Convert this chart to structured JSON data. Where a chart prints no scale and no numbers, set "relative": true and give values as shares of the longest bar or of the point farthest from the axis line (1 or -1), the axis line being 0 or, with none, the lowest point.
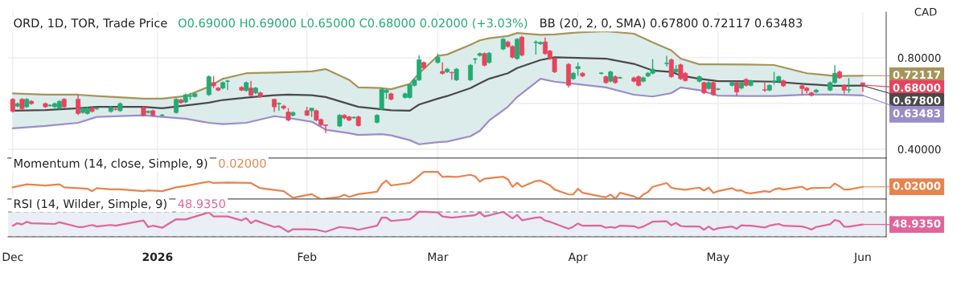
{
  "chart_data": [
    {
      "type": "candlestick",
      "title": "ORD, 1D, TOR, Trade Price",
      "ylabel": "CAD",
      "x": [
        "2025-12-01",
        "2025-12-02",
        "2025-12-03",
        "2025-12-04",
        "2025-12-05",
        "2025-12-08",
        "2025-12-09",
        "2025-12-10",
        "2025-12-11",
        "2025-12-12",
        "2025-12-15",
        "2025-12-16",
        "2025-12-17",
        "2025-12-18",
        "2025-12-19",
        "2025-12-22",
        "2025-12-23",
        "2025-12-24",
        "2025-12-29",
        "2025-12-30",
        "2025-12-31",
        "2026-01-02",
        "2026-01-05",
        "2026-01-06",
        "2026-01-07",
        "2026-01-08",
        "2026-01-09",
        "2026-01-12",
        "2026-01-13",
        "2026-01-14",
        "2026-01-15",
        "2026-01-16",
        "2026-01-19",
        "2026-01-20",
        "2026-01-21",
        "2026-01-22",
        "2026-01-23",
        "2026-01-26",
        "2026-01-27",
        "2026-01-28",
        "2026-01-29",
        "2026-01-30",
        "2026-02-02",
        "2026-02-03",
        "2026-02-04",
        "2026-02-05",
        "2026-02-06",
        "2026-02-09",
        "2026-02-10",
        "2026-02-11",
        "2026-02-12",
        "2026-02-13",
        "2026-02-17",
        "2026-02-18",
        "2026-02-19",
        "2026-02-20",
        "2026-02-23",
        "2026-02-24",
        "2026-02-25",
        "2026-02-26",
        "2026-02-27",
        "2026-03-02",
        "2026-03-03",
        "2026-03-04",
        "2026-03-05",
        "2026-03-06",
        "2026-03-09",
        "2026-03-10",
        "2026-03-11",
        "2026-03-12",
        "2026-03-13",
        "2026-03-16",
        "2026-03-17",
        "2026-03-18",
        "2026-03-19",
        "2026-03-20",
        "2026-03-23",
        "2026-03-24",
        "2026-03-25",
        "2026-03-26",
        "2026-03-27",
        "2026-03-30",
        "2026-03-31",
        "2026-04-01",
        "2026-04-02",
        "2026-04-06",
        "2026-04-07",
        "2026-04-08",
        "2026-04-09",
        "2026-04-10",
        "2026-04-13",
        "2026-04-14",
        "2026-04-15",
        "2026-04-16",
        "2026-04-17",
        "2026-04-20",
        "2026-04-21",
        "2026-04-22",
        "2026-04-23",
        "2026-04-24",
        "2026-04-27",
        "2026-04-28",
        "2026-04-29",
        "2026-04-30",
        "2026-05-01",
        "2026-05-04",
        "2026-05-05",
        "2026-05-06",
        "2026-05-07",
        "2026-05-08",
        "2026-05-11",
        "2026-05-12",
        "2026-05-13",
        "2026-05-14",
        "2026-05-15",
        "2026-05-19",
        "2026-05-20",
        "2026-05-21",
        "2026-05-22",
        "2026-05-25",
        "2026-05-26",
        "2026-05-27",
        "2026-05-28",
        "2026-05-29",
        "2026-06-01"
      ],
      "ohlc": [
        [
          0.618,
          0.623,
          0.56,
          0.565
        ],
        [
          0.588,
          0.604,
          0.583,
          0.599
        ],
        [
          0.618,
          0.623,
          0.572,
          0.577
        ],
        [
          0.585,
          0.623,
          0.58,
          0.618
        ],
        [
          0.609,
          0.614,
          0.594,
          0.599
        ],
        [
          0.599,
          0.604,
          0.58,
          0.585
        ],
        [
          0.591,
          0.596,
          0.586,
          0.591
        ],
        [
          0.585,
          0.604,
          0.58,
          0.599
        ],
        [
          0.579,
          0.614,
          0.574,
          0.609
        ],
        [
          0.618,
          0.623,
          0.58,
          0.585
        ],
        [
          0.618,
          0.638,
          0.548,
          0.556
        ],
        [
          0.56,
          0.582,
          0.555,
          0.577
        ],
        [
          0.556,
          0.584,
          0.551,
          0.579
        ],
        [
          0.579,
          0.584,
          0.56,
          0.565
        ],
        [
          0.577,
          0.582,
          0.572,
          0.577
        ],
        [
          0.565,
          0.587,
          0.56,
          0.582
        ],
        [
          0.575,
          0.58,
          0.569,
          0.574
        ],
        [
          0.568,
          0.604,
          0.563,
          0.599
        ],
        [
          0.582,
          0.587,
          0.543,
          0.548
        ],
        [
          0.56,
          0.57,
          0.555,
          0.565
        ],
        [
          0.568,
          0.573,
          0.543,
          0.548
        ],
        [
          0.548,
          0.553,
          0.543,
          0.548
        ],
        [
          0.56,
          0.623,
          0.555,
          0.618
        ],
        [
          0.615,
          0.62,
          0.598,
          0.603
        ],
        [
          0.606,
          0.643,
          0.601,
          0.638
        ],
        [
          0.632,
          0.646,
          0.615,
          0.632
        ],
        [
          0.63,
          0.647,
          0.625,
          0.642
        ],
        [
          0.638,
          0.722,
          0.633,
          0.717
        ],
        [
          0.691,
          0.72,
          0.667,
          0.677
        ],
        [
          0.667,
          0.672,
          0.653,
          0.658
        ],
        [
          0.667,
          0.696,
          0.662,
          0.691
        ],
        [
          0.697,
          0.703,
          0.658,
          0.697
        ],
        [
          0.67,
          0.675,
          0.653,
          0.658
        ],
        [
          0.656,
          0.696,
          0.651,
          0.691
        ],
        [
          0.667,
          0.699,
          0.632,
          0.635
        ],
        [
          0.646,
          0.672,
          0.641,
          0.667
        ],
        [
          0.646,
          0.651,
          0.624,
          0.629
        ],
        [
          0.618,
          0.62,
          0.562,
          0.585
        ],
        [
          0.599,
          0.604,
          0.568,
          0.599
        ],
        [
          0.588,
          0.593,
          0.574,
          0.579
        ],
        [
          0.562,
          0.579,
          0.522,
          0.527
        ],
        [
          0.548,
          0.565,
          0.543,
          0.56
        ],
        [
          0.568,
          0.585,
          0.545,
          0.548
        ],
        [
          0.568,
          0.579,
          0.541,
          0.579
        ],
        [
          0.568,
          0.573,
          0.522,
          0.527
        ],
        [
          0.529,
          0.534,
          0.501,
          0.506
        ],
        [
          0.506,
          0.506,
          0.47,
          0.503
        ],
        [
          0.501,
          0.553,
          0.496,
          0.548
        ],
        [
          0.548,
          0.553,
          0.531,
          0.536
        ],
        [
          0.541,
          0.546,
          0.522,
          0.527
        ],
        [
          0.538,
          0.543,
          0.533,
          0.538
        ],
        [
          0.541,
          0.546,
          0.498,
          0.503
        ],
        [
          0.517,
          0.553,
          0.512,
          0.548
        ],
        [
          0.576,
          0.667,
          0.571,
          0.662
        ],
        [
          0.648,
          0.663,
          0.62,
          0.658
        ],
        [
          0.642,
          0.647,
          0.613,
          0.618
        ],
        [
          0.626,
          0.647,
          0.621,
          0.642
        ],
        [
          0.626,
          0.687,
          0.621,
          0.682
        ],
        [
          0.679,
          0.708,
          0.674,
          0.703
        ],
        [
          0.703,
          0.811,
          0.698,
          0.791
        ],
        [
          0.779,
          0.784,
          0.75,
          0.755
        ],
        [
          0.779,
          0.818,
          0.774,
          0.802
        ],
        [
          0.74,
          0.779,
          0.726,
          0.731
        ],
        [
          0.738,
          0.755,
          0.733,
          0.75
        ],
        [
          0.735,
          0.74,
          0.703,
          0.734
        ],
        [
          0.703,
          0.755,
          0.698,
          0.75
        ],
        [
          0.703,
          0.772,
          0.698,
          0.767
        ],
        [
          0.794,
          0.799,
          0.773,
          0.794
        ],
        [
          0.81,
          0.823,
          0.805,
          0.818
        ],
        [
          0.818,
          0.823,
          0.762,
          0.767
        ],
        [
          0.779,
          0.825,
          0.774,
          0.82
        ],
        [
          0.838,
          0.886,
          0.833,
          0.881
        ],
        [
          0.869,
          0.874,
          0.844,
          0.849
        ],
        [
          0.849,
          0.854,
          0.797,
          0.802
        ],
        [
          0.796,
          0.886,
          0.791,
          0.881
        ],
        [
          0.89,
          0.895,
          0.806,
          0.811
        ],
        [
          0.867,
          0.876,
          0.814,
          0.867
        ],
        [
          0.861,
          0.872,
          0.856,
          0.867
        ],
        [
          0.869,
          0.888,
          0.813,
          0.818
        ],
        [
          0.829,
          0.834,
          0.791,
          0.796
        ],
        [
          0.796,
          0.801,
          0.733,
          0.738
        ],
        [
          0.771,
          0.776,
          0.67,
          0.679
        ],
        [
          0.708,
          0.737,
          0.703,
          0.732
        ],
        [
          0.752,
          0.779,
          0.72,
          0.761
        ],
        [
          0.732,
          0.737,
          0.715,
          0.72
        ],
        [
          0.732,
          0.737,
          0.727,
          0.732
        ],
        [
          0.717,
          0.722,
          0.686,
          0.691
        ],
        [
          0.697,
          0.743,
          0.692,
          0.738
        ],
        [
          0.717,
          0.722,
          0.686,
          0.691
        ],
        [
          0.712,
          0.717,
          0.707,
          0.712
        ],
        [
          0.712,
          0.717,
          0.692,
          0.697
        ],
        [
          0.717,
          0.722,
          0.674,
          0.679
        ],
        [
          0.697,
          0.717,
          0.692,
          0.712
        ],
        [
          0.72,
          0.737,
          0.715,
          0.732
        ],
        [
          0.732,
          0.794,
          0.727,
          0.75
        ],
        [
          0.775,
          0.808,
          0.761,
          0.775
        ],
        [
          0.791,
          0.796,
          0.712,
          0.717
        ],
        [
          0.738,
          0.767,
          0.733,
          0.75
        ],
        [
          0.769,
          0.774,
          0.703,
          0.708
        ],
        [
          0.732,
          0.737,
          0.695,
          0.7
        ],
        [
          0.697,
          0.722,
          0.692,
          0.717
        ],
        [
          0.691,
          0.696,
          0.641,
          0.646
        ],
        [
          0.665,
          0.696,
          0.66,
          0.691
        ],
        [
          0.691,
          0.696,
          0.633,
          0.638
        ],
        [
          0.662,
          0.667,
          0.657,
          0.662
        ],
        [
          0.679,
          0.696,
          0.674,
          0.691
        ],
        [
          0.691,
          0.696,
          0.632,
          0.65
        ],
        [
          0.667,
          0.696,
          0.662,
          0.691
        ],
        [
          0.705,
          0.71,
          0.674,
          0.679
        ],
        [
          0.679,
          0.704,
          0.674,
          0.699
        ],
        [
          0.66,
          0.691,
          0.65,
          0.658
        ],
        [
          0.658,
          0.684,
          0.653,
          0.679
        ],
        [
          0.697,
          0.738,
          0.682,
          0.697
        ],
        [
          0.697,
          0.722,
          0.692,
          0.717
        ],
        [
          0.699,
          0.704,
          0.672,
          0.677
        ],
        [
          0.677,
          0.682,
          0.638,
          0.665
        ],
        [
          0.667,
          0.672,
          0.644,
          0.656
        ],
        [
          0.646,
          0.651,
          0.63,
          0.635
        ],
        [
          0.65,
          0.663,
          0.645,
          0.658
        ],
        [
          0.658,
          0.696,
          0.653,
          0.691
        ],
        [
          0.691,
          0.767,
          0.686,
          0.732
        ],
        [
          0.738,
          0.744,
          0.707,
          0.712
        ],
        [
          0.679,
          0.684,
          0.642,
          0.658
        ],
        [
          0.658,
          0.711,
          0.646,
          0.66
        ],
        [
          0.69,
          0.69,
          0.65,
          0.68
        ]
      ],
      "series": [
        {
          "type": "line",
          "color": "#a89359",
          "x": [
            "2025-12-01",
            "2025-12-08",
            "2025-12-15",
            "2025-12-19",
            "2025-12-29",
            "2026-01-02",
            "2026-01-07",
            "2026-01-12",
            "2026-01-15",
            "2026-01-20",
            "2026-01-26",
            "2026-01-29",
            "2026-02-03",
            "2026-02-06",
            "2026-02-11",
            "2026-02-13",
            "2026-02-18",
            "2026-02-20",
            "2026-02-24",
            "2026-02-26",
            "2026-03-02",
            "2026-03-04",
            "2026-03-09",
            "2026-03-11",
            "2026-03-13",
            "2026-03-17",
            "2026-03-19",
            "2026-03-24",
            "2026-03-27",
            "2026-04-01",
            "2026-04-07",
            "2026-04-13",
            "2026-04-17",
            "2026-04-21",
            "2026-04-23",
            "2026-04-27",
            "2026-05-01",
            "2026-05-07",
            "2026-05-13",
            "2026-05-20",
            "2026-05-26",
            "2026-06-01"
          ],
          "values": [
            0.644,
            0.638,
            0.638,
            0.632,
            0.621,
            0.621,
            0.632,
            0.673,
            0.708,
            0.732,
            0.735,
            0.737,
            0.74,
            0.75,
            0.703,
            0.67,
            0.667,
            0.662,
            0.685,
            0.732,
            0.808,
            0.814,
            0.857,
            0.876,
            0.885,
            0.895,
            0.908,
            0.9,
            0.902,
            0.911,
            0.916,
            0.905,
            0.867,
            0.832,
            0.796,
            0.771,
            0.771,
            0.77,
            0.768,
            0.732,
            0.72,
            0.72117
          ]
        },
        {
          "type": "line",
          "color": "#4a4a4a",
          "x": [
            "2025-12-01",
            "2025-12-08",
            "2025-12-15",
            "2025-12-19",
            "2025-12-29",
            "2026-01-02",
            "2026-01-07",
            "2026-01-12",
            "2026-01-15",
            "2026-01-20",
            "2026-01-26",
            "2026-01-29",
            "2026-02-03",
            "2026-02-06",
            "2026-02-11",
            "2026-02-13",
            "2026-02-18",
            "2026-02-20",
            "2026-02-24",
            "2026-02-26",
            "2026-03-02",
            "2026-03-04",
            "2026-03-09",
            "2026-03-11",
            "2026-03-13",
            "2026-03-17",
            "2026-03-19",
            "2026-03-24",
            "2026-03-27",
            "2026-04-01",
            "2026-04-07",
            "2026-04-13",
            "2026-04-17",
            "2026-04-21",
            "2026-04-23",
            "2026-04-27",
            "2026-05-01",
            "2026-05-07",
            "2026-05-13",
            "2026-05-20",
            "2026-05-26",
            "2026-06-01"
          ],
          "values": [
            0.568,
            0.571,
            0.579,
            0.585,
            0.585,
            0.579,
            0.591,
            0.603,
            0.615,
            0.625,
            0.636,
            0.638,
            0.636,
            0.628,
            0.597,
            0.585,
            0.574,
            0.57,
            0.568,
            0.595,
            0.621,
            0.632,
            0.667,
            0.688,
            0.708,
            0.732,
            0.755,
            0.79,
            0.802,
            0.799,
            0.796,
            0.773,
            0.744,
            0.738,
            0.722,
            0.708,
            0.697,
            0.697,
            0.695,
            0.684,
            0.677,
            0.678
          ],
          "upper": [
            0.644,
            0.638,
            0.638,
            0.632,
            0.621,
            0.621,
            0.632,
            0.673,
            0.708,
            0.732,
            0.735,
            0.737,
            0.74,
            0.75,
            0.703,
            0.67,
            0.667,
            0.662,
            0.685,
            0.732,
            0.808,
            0.814,
            0.857,
            0.876,
            0.885,
            0.895,
            0.908,
            0.9,
            0.902,
            0.911,
            0.916,
            0.905,
            0.867,
            0.832,
            0.796,
            0.771,
            0.771,
            0.77,
            0.768,
            0.732,
            0.72,
            0.72117
          ],
          "lower": [
            0.491,
            0.501,
            0.515,
            0.541,
            0.548,
            0.541,
            0.533,
            0.515,
            0.509,
            0.515,
            0.544,
            0.536,
            0.52,
            0.485,
            0.47,
            0.462,
            0.465,
            0.46,
            0.439,
            0.421,
            0.43,
            0.433,
            0.456,
            0.48,
            0.525,
            0.585,
            0.628,
            0.708,
            0.695,
            0.684,
            0.67,
            0.638,
            0.63,
            0.645,
            0.67,
            0.658,
            0.634,
            0.632,
            0.632,
            0.638,
            0.638,
            0.63483
          ]
        },
        {
          "type": "line",
          "color": "#9b8dc8",
          "x": [
            "2025-12-01",
            "2025-12-08",
            "2025-12-15",
            "2025-12-19",
            "2025-12-29",
            "2026-01-02",
            "2026-01-07",
            "2026-01-12",
            "2026-01-15",
            "2026-01-20",
            "2026-01-26",
            "2026-01-29",
            "2026-02-03",
            "2026-02-06",
            "2026-02-11",
            "2026-02-13",
            "2026-02-18",
            "2026-02-20",
            "2026-02-24",
            "2026-02-26",
            "2026-03-02",
            "2026-03-04",
            "2026-03-09",
            "2026-03-11",
            "2026-03-13",
            "2026-03-17",
            "2026-03-19",
            "2026-03-24",
            "2026-03-27",
            "2026-04-01",
            "2026-04-07",
            "2026-04-13",
            "2026-04-17",
            "2026-04-21",
            "2026-04-23",
            "2026-04-27",
            "2026-05-01",
            "2026-05-07",
            "2026-05-13",
            "2026-05-20",
            "2026-05-26",
            "2026-06-01"
          ],
          "values": [
            0.491,
            0.501,
            0.515,
            0.541,
            0.548,
            0.541,
            0.533,
            0.515,
            0.509,
            0.515,
            0.544,
            0.536,
            0.52,
            0.485,
            0.47,
            0.462,
            0.465,
            0.46,
            0.439,
            0.421,
            0.43,
            0.433,
            0.456,
            0.48,
            0.525,
            0.585,
            0.628,
            0.708,
            0.695,
            0.684,
            0.67,
            0.638,
            0.63,
            0.645,
            0.67,
            0.658,
            0.634,
            0.632,
            0.632,
            0.638,
            0.638,
            0.63483
          ]
        }
      ],
      "xlim": [
        "2025-11-30",
        "2026-06-06"
      ],
      "xticks": [
        {
          "value": "2025-12-01",
          "label": null
        },
        {
          "value": "2026-01-01",
          "label": null
        },
        {
          "value": "2026-02-02",
          "label": null
        },
        {
          "value": "2026-03-02",
          "label": null
        },
        {
          "value": "2026-04-01",
          "label": null
        },
        {
          "value": "2026-05-01",
          "label": null
        },
        {
          "value": "2026-06-01",
          "label": null
        }
      ],
      "ylim": [
        0.36,
        1.0
      ],
      "yticks": [
        {
          "value": 0.4,
          "label": "0.40000"
        },
        {
          "value": 0.6,
          "label": null
        },
        {
          "value": 0.8,
          "label": "0.80000"
        }
      ],
      "grid": true,
      "tick_labels": "y",
      "annotations": [
        "O0.69000 H0.69000 L0.65000 C0.68000 0.02000 (+3.03%)",
        "BB (20, 2, 0, SMA) 0.67800 0.72117 0.63483",
        {
          "text": "0.72117",
          "x": "2026-06-01",
          "y": 0.72117
        },
        {
          "text": "0.68000",
          "x": "2026-06-01",
          "y": 0.68
        },
        {
          "text": "0.67800",
          "x": "2026-06-01",
          "y": 0.678
        },
        {
          "text": "0.63483",
          "x": "2026-06-01",
          "y": 0.63483
        }
      ]
    },
    {
      "type": "line",
      "title": "Momentum (14, close, Simple, 9)",
      "relative": true,
      "tick_labels": false,
      "grid": "x",
      "xlim": [
        "2025-11-30",
        "2026-06-06"
      ],
      "xticks": [
        {
          "value": "2025-12-01",
          "label": null
        },
        {
          "value": "2026-01-01",
          "label": null
        },
        {
          "value": "2026-02-02",
          "label": null
        },
        {
          "value": "2026-03-02",
          "label": null
        },
        {
          "value": "2026-04-01",
          "label": null
        },
        {
          "value": "2026-05-01",
          "label": null
        },
        {
          "value": "2026-06-01",
          "label": null
        }
      ],
      "series": [
        {
          "color": "#e8834d",
          "x": [
            "2025-12-01",
            "2025-12-04",
            "2025-12-08",
            "2025-12-11",
            "2025-12-12",
            "2025-12-17",
            "2025-12-18",
            "2025-12-19",
            "2025-12-22",
            "2025-12-24",
            "2025-12-29",
            "2025-12-30",
            "2026-01-02",
            "2026-01-05",
            "2026-01-07",
            "2026-01-12",
            "2026-01-13",
            "2026-01-16",
            "2026-01-21",
            "2026-01-23",
            "2026-01-28",
            "2026-01-30",
            "2026-02-03",
            "2026-02-04",
            "2026-02-05",
            "2026-02-09",
            "2026-02-10",
            "2026-02-11",
            "2026-02-13",
            "2026-02-17",
            "2026-02-18",
            "2026-02-19",
            "2026-02-20",
            "2026-02-24",
            "2026-02-25",
            "2026-02-27",
            "2026-03-02",
            "2026-03-03",
            "2026-03-04",
            "2026-03-06",
            "2026-03-09",
            "2026-03-10",
            "2026-03-11",
            "2026-03-12",
            "2026-03-16",
            "2026-03-17",
            "2026-03-18",
            "2026-03-19",
            "2026-03-20",
            "2026-03-23",
            "2026-03-24",
            "2026-03-26",
            "2026-03-27",
            "2026-03-30",
            "2026-03-31",
            "2026-04-01",
            "2026-04-02",
            "2026-04-06",
            "2026-04-07",
            "2026-04-08",
            "2026-04-09",
            "2026-04-10",
            "2026-04-13",
            "2026-04-14",
            "2026-04-15",
            "2026-04-16",
            "2026-04-17",
            "2026-04-20",
            "2026-04-21",
            "2026-04-22",
            "2026-04-24",
            "2026-04-27",
            "2026-04-28",
            "2026-04-29",
            "2026-04-30",
            "2026-05-01",
            "2026-05-04",
            "2026-05-05",
            "2026-05-06",
            "2026-05-07",
            "2026-05-08",
            "2026-05-11",
            "2026-05-12",
            "2026-05-13",
            "2026-05-14",
            "2026-05-15",
            "2026-05-19",
            "2026-05-20",
            "2026-05-21",
            "2026-05-25",
            "2026-05-26",
            "2026-05-27",
            "2026-05-28",
            "2026-05-29",
            "2026-06-01"
          ],
          "values": [
            0.43,
            0.54,
            0.5,
            0.54,
            0.43,
            0.38,
            0.29,
            0.4,
            0.36,
            0.36,
            0.29,
            0.32,
            0.29,
            0.43,
            0.48,
            0.64,
            0.59,
            0.61,
            0.59,
            0.4,
            0.29,
            0.05,
            0.18,
            0.08,
            0,
            0.08,
            0.16,
            0.08,
            0.18,
            0.27,
            0.54,
            0.68,
            0.5,
            0.59,
            0.72,
            1.0,
            1.0,
            0.81,
            0.83,
            0.81,
            0.89,
            0.83,
            0.64,
            0.75,
            0.82,
            0.73,
            0.45,
            0.6,
            0.45,
            0.66,
            0.68,
            0.51,
            0.35,
            0.17,
            0.17,
            0.38,
            0.23,
            0.09,
            0.07,
            0.17,
            0.01,
            0.23,
            0.1,
            0.01,
            0.17,
            0.26,
            0.45,
            0.59,
            0.42,
            0.38,
            0.34,
            0.42,
            0.31,
            0.42,
            0.23,
            0.29,
            0.4,
            0.31,
            0.32,
            0.23,
            0.21,
            0.29,
            0.26,
            0.35,
            0.4,
            0.35,
            0.45,
            0.35,
            0.4,
            0.42,
            0.57,
            0.47,
            0.35,
            0.35,
            0.45
          ]
        }
      ],
      "annotations": [
        "0.02000",
        {
          "text": "0.02000",
          "x": "2026-06-01",
          "y": 0.45
        }
      ]
    },
    {
      "type": "line",
      "title": "RSI (14, Wilder, Simple, 9)",
      "relative": true,
      "tick_labels": "x",
      "grid": "x",
      "xlim": [
        "2025-11-30",
        "2026-06-06"
      ],
      "xticks": [
        {
          "value": "2025-12-01",
          "label": "Dec"
        },
        {
          "value": "2026-01-01",
          "label": "2026"
        },
        {
          "value": "2026-02-02",
          "label": "Feb"
        },
        {
          "value": "2026-03-02",
          "label": "Mar"
        },
        {
          "value": "2026-04-01",
          "label": "Apr"
        },
        {
          "value": "2026-05-01",
          "label": "May"
        },
        {
          "value": "2026-06-01",
          "label": "Jun"
        }
      ],
      "bands": [
        {
          "axis": "y",
          "from": 0,
          "to": 0.99,
          "color": "#e9eff4"
        }
      ],
      "ref_lines": [
        {
          "axis": "y",
          "value": 0.99,
          "line_style": "dashed",
          "color": "#a0a0a0"
        },
        {
          "axis": "y",
          "value": 0,
          "line_style": "dashed",
          "color": "#a0a0a0"
        }
      ],
      "series": [
        {
          "color": "#e0659a",
          "x": [
            "2025-12-01",
            "2025-12-02",
            "2025-12-03",
            "2025-12-04",
            "2025-12-05",
            "2025-12-10",
            "2025-12-11",
            "2025-12-15",
            "2025-12-16",
            "2025-12-18",
            "2025-12-19",
            "2025-12-22",
            "2025-12-23",
            "2025-12-29",
            "2025-12-30",
            "2025-12-31",
            "2026-01-02",
            "2026-01-05",
            "2026-01-07",
            "2026-01-12",
            "2026-01-13",
            "2026-01-16",
            "2026-01-19",
            "2026-01-20",
            "2026-01-21",
            "2026-01-22",
            "2026-01-26",
            "2026-01-27",
            "2026-01-29",
            "2026-01-30",
            "2026-02-02",
            "2026-02-04",
            "2026-02-06",
            "2026-02-09",
            "2026-02-12",
            "2026-02-13",
            "2026-02-17",
            "2026-02-18",
            "2026-02-19",
            "2026-02-20",
            "2026-02-24",
            "2026-02-25",
            "2026-02-26",
            "2026-03-02",
            "2026-03-03",
            "2026-03-05",
            "2026-03-10",
            "2026-03-11",
            "2026-03-12",
            "2026-03-16",
            "2026-03-18",
            "2026-03-19",
            "2026-03-20",
            "2026-03-23",
            "2026-03-24",
            "2026-03-25",
            "2026-03-26",
            "2026-03-30",
            "2026-03-31",
            "2026-04-01",
            "2026-04-02",
            "2026-04-06",
            "2026-04-07",
            "2026-04-08",
            "2026-04-09",
            "2026-04-10",
            "2026-04-13",
            "2026-04-14",
            "2026-04-15",
            "2026-04-16",
            "2026-04-17",
            "2026-04-20",
            "2026-04-21",
            "2026-04-22",
            "2026-04-23",
            "2026-04-24",
            "2026-04-27",
            "2026-04-28",
            "2026-04-29",
            "2026-04-30",
            "2026-05-01",
            "2026-05-04",
            "2026-05-05",
            "2026-05-06",
            "2026-05-07",
            "2026-05-08",
            "2026-05-11",
            "2026-05-12",
            "2026-05-13",
            "2026-05-14",
            "2026-05-15",
            "2026-05-19",
            "2026-05-20",
            "2026-05-21",
            "2026-05-22",
            "2026-05-25",
            "2026-05-26",
            "2026-05-27",
            "2026-05-28",
            "2026-05-29",
            "2026-06-01"
          ],
          "values": [
            0.44,
            0.54,
            0.49,
            0.6,
            0.54,
            0.51,
            0.58,
            0.39,
            0.39,
            0.47,
            0.41,
            0.47,
            0.44,
            0.65,
            0.39,
            0.44,
            0.36,
            0.7,
            0.69,
            0.97,
            0.81,
            0.81,
            0.65,
            0.74,
            0.54,
            0.65,
            0.39,
            0.42,
            0.2,
            0.3,
            0.3,
            0.28,
            0.2,
            0.39,
            0.33,
            0.28,
            0.44,
            0.76,
            0.76,
            0.63,
            0.7,
            0.83,
            1.0,
            0.97,
            0.81,
            0.76,
            0.86,
            0.97,
            0.81,
            0.99,
            0.73,
            0.87,
            0.66,
            0.76,
            0.78,
            0.64,
            0.6,
            0.32,
            0.4,
            0.53,
            0.44,
            0.44,
            0.36,
            0.39,
            0.36,
            0.44,
            0.42,
            0.35,
            0.41,
            0.5,
            0.6,
            0.62,
            0.46,
            0.55,
            0.43,
            0.41,
            0.41,
            0.28,
            0.41,
            0.28,
            0.34,
            0.41,
            0.32,
            0.46,
            0.44,
            0.44,
            0.37,
            0.44,
            0.48,
            0.51,
            0.44,
            0.41,
            0.36,
            0.29,
            0.39,
            0.5,
            0.67,
            0.62,
            0.4,
            0.4,
            0.49
          ]
        }
      ],
      "annotations": [
        "48.9350",
        {
          "text": "48.9350",
          "x": "2026-06-01",
          "y": 0.49
        }
      ]
    }
  ]
}
